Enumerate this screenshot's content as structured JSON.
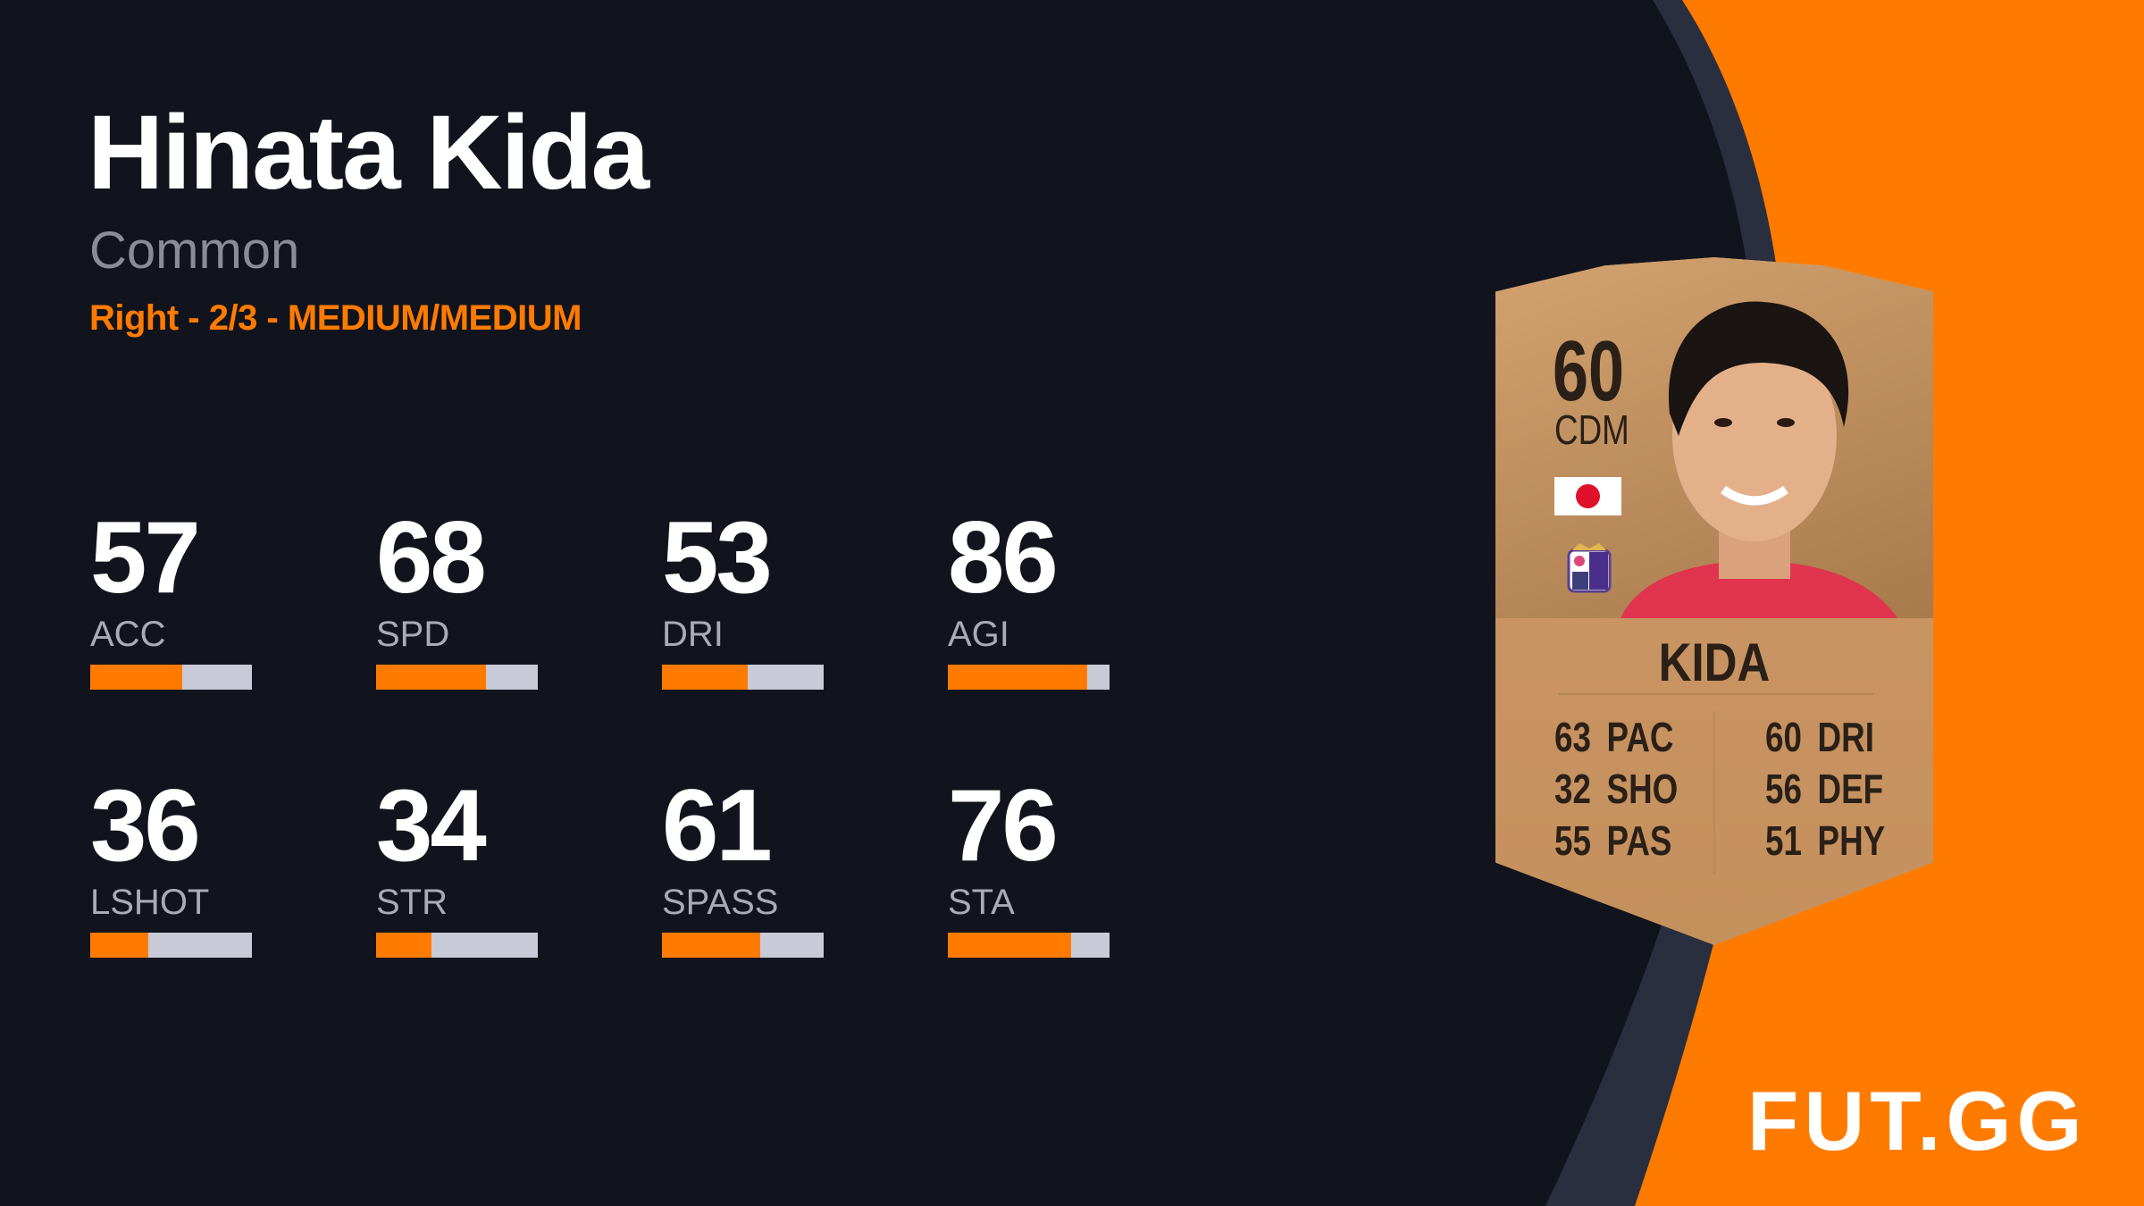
{
  "player": {
    "name": "Hinata Kida",
    "rarity": "Common",
    "details": "Right - 2/3 - MEDIUM/MEDIUM"
  },
  "stats": [
    {
      "value": "57",
      "label": "ACC",
      "fill": 0.57
    },
    {
      "value": "68",
      "label": "SPD",
      "fill": 0.68
    },
    {
      "value": "53",
      "label": "DRI",
      "fill": 0.53
    },
    {
      "value": "86",
      "label": "AGI",
      "fill": 0.86
    },
    {
      "value": "36",
      "label": "LSHOT",
      "fill": 0.36
    },
    {
      "value": "34",
      "label": "STR",
      "fill": 0.34
    },
    {
      "value": "61",
      "label": "SPASS",
      "fill": 0.61
    },
    {
      "value": "76",
      "label": "STA",
      "fill": 0.76
    }
  ],
  "card": {
    "rating": "60",
    "position": "CDM",
    "name": "KIDA",
    "nation_flag": "japan-flag",
    "club_badge": "club-crest",
    "left": [
      {
        "value": "63",
        "label": "PAC"
      },
      {
        "value": "32",
        "label": "SHO"
      },
      {
        "value": "55",
        "label": "PAS"
      }
    ],
    "right": [
      {
        "value": "60",
        "label": "DRI"
      },
      {
        "value": "56",
        "label": "DEF"
      },
      {
        "value": "51",
        "label": "PHY"
      }
    ]
  },
  "brand": {
    "logo": "FUT.GG"
  },
  "colors": {
    "accent": "#ff7b00",
    "background": "#12141d",
    "band": "#2a2f3f",
    "bar_empty": "#c9cad8"
  }
}
